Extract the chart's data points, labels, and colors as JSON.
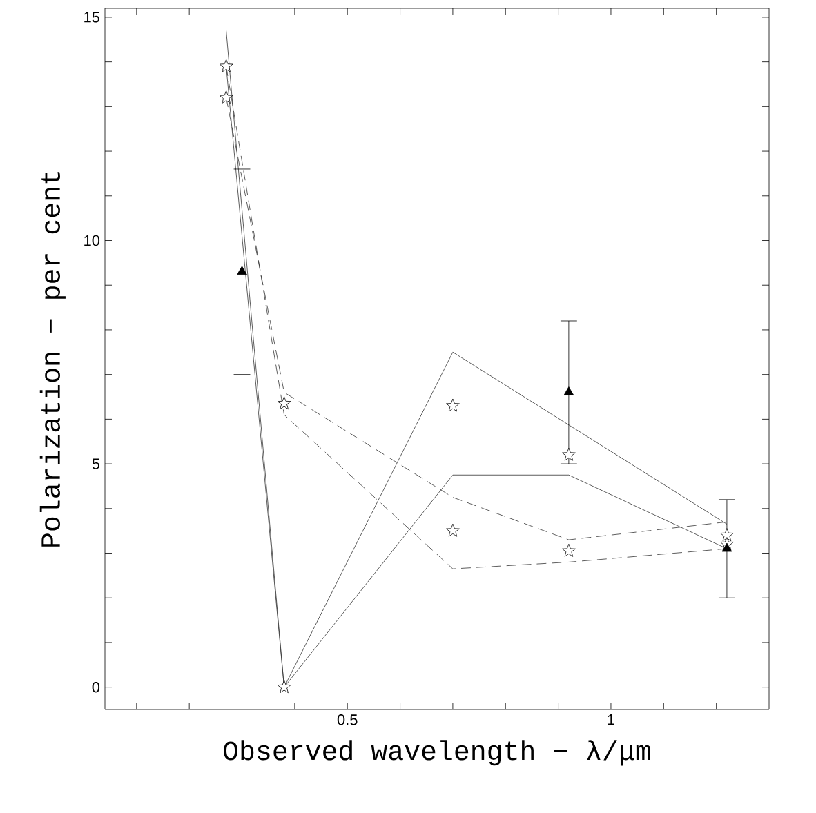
{
  "chart_data": {
    "type": "line",
    "xlabel": "Observed wavelength − λ/μm",
    "ylabel": "Polarization − per cent",
    "xlim": [
      0.04,
      1.3
    ],
    "ylim": [
      -0.5,
      15.2
    ],
    "xticks": [
      {
        "value": 0.1,
        "label": null
      },
      {
        "value": 0.2,
        "label": null
      },
      {
        "value": 0.3,
        "label": null
      },
      {
        "value": 0.4,
        "label": null
      },
      0.5,
      {
        "value": 0.6,
        "label": null
      },
      {
        "value": 0.7,
        "label": null
      },
      {
        "value": 0.8,
        "label": null
      },
      {
        "value": 0.9,
        "label": null
      },
      1,
      {
        "value": 1.1,
        "label": null
      },
      {
        "value": 1.2,
        "label": null
      }
    ],
    "yticks": [
      0,
      {
        "value": 1,
        "label": null
      },
      {
        "value": 2,
        "label": null
      },
      {
        "value": 3,
        "label": null
      },
      {
        "value": 4,
        "label": null
      },
      5,
      {
        "value": 6,
        "label": null
      },
      {
        "value": 7,
        "label": null
      },
      {
        "value": 8,
        "label": null
      },
      {
        "value": 9,
        "label": null
      },
      10,
      {
        "value": 11,
        "label": null
      },
      {
        "value": 12,
        "label": null
      },
      {
        "value": 13,
        "label": null
      },
      {
        "value": 14,
        "label": null
      },
      15
    ],
    "grid": false,
    "series": [
      {
        "color": "#333333",
        "line_style": "solid",
        "marker": "none",
        "x": [
          0.27,
          0.38,
          0.7,
          1.22
        ],
        "values": [
          14.7,
          0,
          7.5,
          3.65
        ]
      },
      {
        "color": "#333333",
        "line_style": "solid",
        "marker": "none",
        "x": [
          0.27,
          0.38,
          0.7,
          0.92,
          1.22
        ],
        "values": [
          13.9,
          0,
          4.75,
          4.75,
          3.1
        ]
      },
      {
        "color": "#333333",
        "line_style": "dashed",
        "marker": "none",
        "x": [
          0.27,
          0.38,
          0.7,
          0.92,
          1.22
        ],
        "values": [
          13.2,
          6.6,
          4.25,
          3.3,
          3.7
        ]
      },
      {
        "color": "#333333",
        "line_style": "dashed",
        "marker": "none",
        "x": [
          0.27,
          0.38,
          0.7,
          0.92,
          1.22
        ],
        "values": [
          13.9,
          6.1,
          2.65,
          2.8,
          3.1
        ]
      },
      {
        "type": "scatter",
        "color": "#000000",
        "marker": "star",
        "x": [
          0.27,
          0.27,
          0.38,
          0.38,
          0.7,
          0.7,
          0.92,
          0.92,
          1.22,
          1.22
        ],
        "values": [
          13.9,
          13.2,
          6.35,
          0,
          6.3,
          3.5,
          5.2,
          3.05,
          3.4,
          3.2
        ]
      },
      {
        "type": "scatter",
        "color": "#000000",
        "marker": "triangle",
        "x": [
          0.3,
          0.92,
          1.22
        ],
        "values": [
          9.3,
          6.6,
          3.1
        ],
        "errors": [
          [
            7.0,
            11.6
          ],
          [
            5.0,
            8.2
          ],
          [
            2.0,
            4.2
          ]
        ]
      }
    ]
  }
}
